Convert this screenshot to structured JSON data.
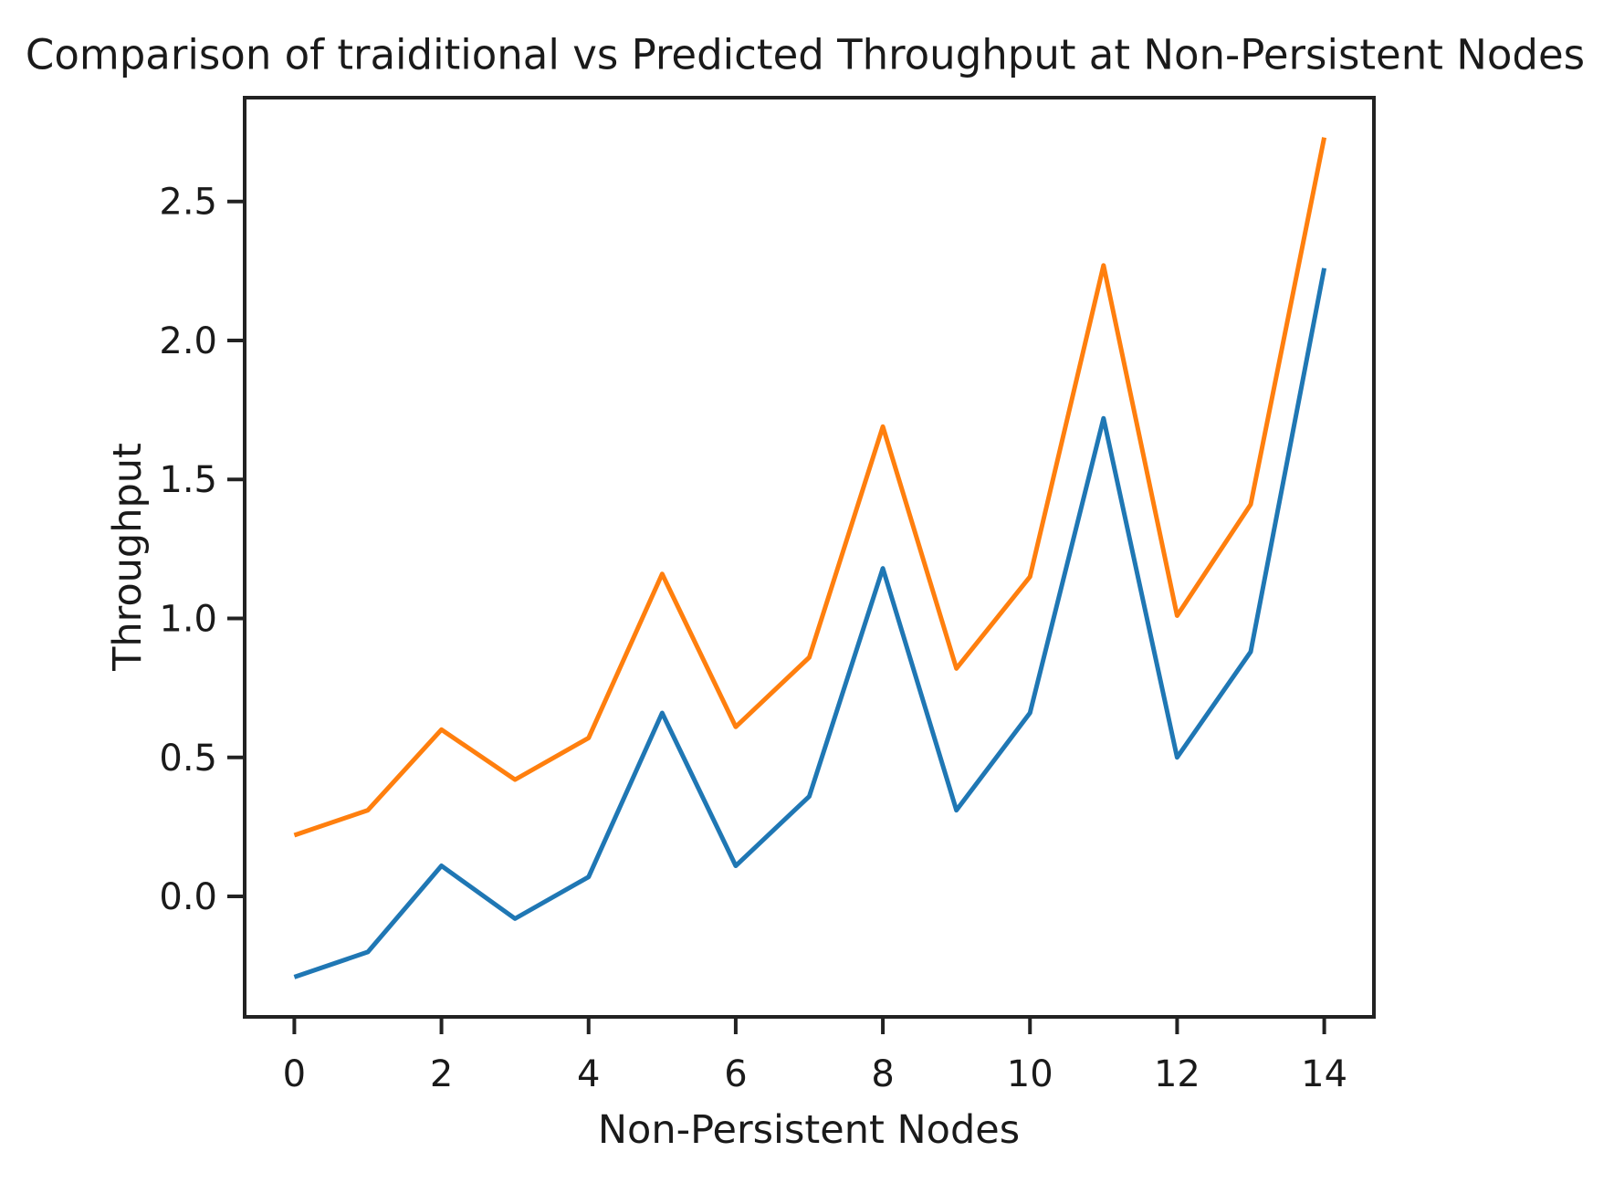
{
  "chart_data": {
    "type": "line",
    "title": "Comparison of traiditional vs Predicted Throughput at Non-Persistent Nodes",
    "xlabel": "Non-Persistent Nodes",
    "ylabel": "Throughput",
    "x": [
      0,
      1,
      2,
      3,
      4,
      5,
      6,
      7,
      8,
      9,
      10,
      11,
      12,
      13,
      14
    ],
    "series": [
      {
        "name": "blue-series",
        "color": "#1f77b4",
        "values": [
          -0.29,
          -0.2,
          0.11,
          -0.08,
          0.07,
          0.66,
          0.11,
          0.36,
          1.18,
          0.31,
          0.66,
          1.72,
          0.5,
          0.88,
          2.26
        ]
      },
      {
        "name": "orange-series",
        "color": "#ff7f0e",
        "values": [
          0.22,
          0.31,
          0.6,
          0.42,
          0.57,
          1.16,
          0.61,
          0.86,
          1.69,
          0.82,
          1.15,
          2.27,
          1.01,
          1.41,
          2.73
        ]
      }
    ],
    "xticks": [
      0,
      2,
      4,
      6,
      8,
      10,
      12,
      14
    ],
    "xtick_labels": [
      "0",
      "2",
      "4",
      "6",
      "8",
      "10",
      "12",
      "14"
    ],
    "yticks": [
      0.0,
      0.5,
      1.0,
      1.5,
      2.0,
      2.5
    ],
    "ytick_labels": [
      "0.0",
      "0.5",
      "1.0",
      "1.5",
      "2.0",
      "2.5"
    ],
    "xlim": [
      -0.7,
      14.7
    ],
    "ylim": [
      -0.44,
      2.88
    ],
    "grid": false,
    "legend": "none",
    "markers": "none"
  }
}
